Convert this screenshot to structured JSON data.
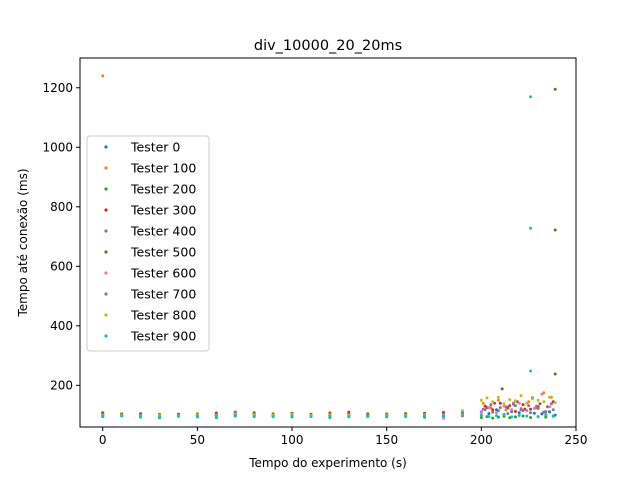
{
  "chart_data": {
    "type": "scatter",
    "title": "div_10000_20_20ms",
    "xlabel": "Tempo do experimento (s)",
    "ylabel": "Tempo até conexão (ms)",
    "xlim": [
      -12,
      250
    ],
    "ylim": [
      60,
      1300
    ],
    "xticks": [
      0,
      50,
      100,
      150,
      200,
      250
    ],
    "yticks": [
      200,
      400,
      600,
      800,
      1000,
      1200
    ],
    "grid": false,
    "legend_position": "center-left",
    "series": [
      {
        "name": "Tester 0",
        "color": "#1f77b4",
        "x": [
          0,
          10,
          20,
          30,
          40,
          50,
          60,
          70,
          80,
          90,
          100,
          110,
          120,
          130,
          140,
          150,
          160,
          170,
          180,
          190,
          200,
          204,
          208,
          212,
          216,
          220,
          224,
          228,
          232,
          236,
          239
        ],
        "y": [
          98,
          99,
          101,
          97,
          100,
          99,
          101,
          102,
          99,
          100,
          101,
          99,
          100,
          98,
          100,
          99,
          101,
          100,
          99,
          100,
          110,
          105,
          118,
          102,
          112,
          108,
          115,
          106,
          104,
          111,
          100
        ]
      },
      {
        "name": "Tester 100",
        "color": "#ff7f0e",
        "x": [
          0,
          10,
          20,
          30,
          40,
          50,
          60,
          70,
          80,
          90,
          100,
          110,
          120,
          130,
          140,
          150,
          160,
          170,
          180,
          190,
          201,
          205,
          209,
          213,
          217,
          221,
          225,
          229,
          233,
          237
        ],
        "y": [
          1240,
          101,
          100,
          103,
          99,
          100,
          102,
          101,
          100,
          99,
          101,
          100,
          101,
          103,
          99,
          100,
          101,
          100,
          102,
          105,
          140,
          125,
          150,
          118,
          135,
          122,
          145,
          130,
          175,
          160
        ]
      },
      {
        "name": "Tester 200",
        "color": "#2ca02c",
        "x": [
          0,
          10,
          20,
          30,
          40,
          50,
          60,
          70,
          80,
          90,
          100,
          110,
          120,
          130,
          140,
          150,
          160,
          170,
          180,
          190,
          200,
          203,
          206,
          209,
          212,
          215,
          218,
          222,
          226,
          230,
          234,
          238
        ],
        "y": [
          95,
          98,
          93,
          91,
          96,
          94,
          92,
          97,
          95,
          96,
          94,
          97,
          92,
          95,
          96,
          94,
          97,
          93,
          95,
          98,
          92,
          95,
          90,
          93,
          96,
          91,
          94,
          97,
          92,
          95,
          93,
          96
        ]
      },
      {
        "name": "Tester 300",
        "color": "#d62728",
        "x": [
          0,
          10,
          20,
          30,
          40,
          50,
          60,
          70,
          80,
          90,
          100,
          110,
          120,
          130,
          140,
          150,
          160,
          170,
          180,
          190,
          202,
          206,
          210,
          214,
          218,
          222,
          226,
          230,
          234,
          238
        ],
        "y": [
          108,
          104,
          103,
          101,
          102,
          103,
          107,
          110,
          108,
          104,
          106,
          103,
          107,
          110,
          104,
          103,
          105,
          106,
          109,
          112,
          130,
          118,
          140,
          125,
          112,
          135,
          120,
          128,
          110,
          145
        ]
      },
      {
        "name": "Tester 400",
        "color": "#9467bd",
        "x": [
          0,
          10,
          20,
          30,
          40,
          50,
          60,
          70,
          80,
          90,
          100,
          110,
          120,
          130,
          140,
          150,
          160,
          170,
          180,
          190,
          201,
          205,
          209,
          213,
          217,
          221,
          225,
          229,
          233,
          237
        ],
        "y": [
          102,
          100,
          104,
          98,
          101,
          103,
          100,
          108,
          104,
          101,
          103,
          102,
          99,
          104,
          101,
          100,
          103,
          101,
          104,
          106,
          120,
          135,
          115,
          128,
          140,
          118,
          132,
          125,
          110,
          138
        ]
      },
      {
        "name": "Tester 500",
        "color": "#8c564b",
        "x": [
          0,
          10,
          20,
          30,
          40,
          50,
          60,
          70,
          80,
          90,
          100,
          110,
          120,
          130,
          140,
          150,
          160,
          170,
          180,
          190,
          203,
          207,
          211,
          215,
          219,
          223,
          227,
          231,
          235,
          239,
          239,
          239
        ],
        "y": [
          104,
          102,
          105,
          101,
          103,
          104,
          102,
          106,
          104,
          103,
          105,
          102,
          104,
          103,
          101,
          104,
          102,
          105,
          103,
          108,
          125,
          140,
          188,
          132,
          145,
          120,
          158,
          138,
          128,
          1195,
          722,
          238
        ]
      },
      {
        "name": "Tester 600",
        "color": "#e377c2",
        "x": [
          0,
          10,
          20,
          30,
          40,
          50,
          60,
          70,
          80,
          90,
          100,
          110,
          120,
          130,
          140,
          150,
          160,
          170,
          180,
          190,
          200,
          204,
          208,
          212,
          216,
          220,
          224,
          228,
          232,
          236
        ],
        "y": [
          100,
          98,
          99,
          95,
          97,
          99,
          96,
          102,
          98,
          97,
          99,
          96,
          98,
          100,
          97,
          98,
          96,
          99,
          90,
          101,
          112,
          125,
          108,
          130,
          118,
          140,
          115,
          122,
          170,
          128
        ]
      },
      {
        "name": "Tester 700",
        "color": "#7f7f7f",
        "x": [
          0,
          10,
          20,
          30,
          40,
          50,
          60,
          70,
          80,
          90,
          100,
          110,
          120,
          130,
          140,
          150,
          160,
          170,
          180,
          190,
          202,
          206,
          210,
          214,
          218,
          222,
          226,
          230,
          234,
          238
        ],
        "y": [
          101,
          99,
          98,
          97,
          99,
          98,
          100,
          103,
          100,
          99,
          101,
          98,
          100,
          99,
          97,
          99,
          100,
          98,
          101,
          104,
          118,
          110,
          125,
          105,
          132,
          115,
          108,
          122,
          112,
          118
        ]
      },
      {
        "name": "Tester 800",
        "color": "#bcbd22",
        "x": [
          0,
          10,
          20,
          30,
          40,
          50,
          60,
          70,
          80,
          90,
          100,
          110,
          120,
          130,
          140,
          150,
          160,
          170,
          180,
          190,
          200,
          203,
          206,
          209,
          212,
          215,
          218,
          221,
          224,
          227,
          230,
          233,
          236,
          239
        ],
        "y": [
          99,
          100,
          97,
          99,
          98,
          101,
          99,
          104,
          101,
          100,
          102,
          99,
          101,
          100,
          98,
          100,
          99,
          101,
          100,
          115,
          150,
          158,
          145,
          160,
          138,
          152,
          148,
          165,
          140,
          155,
          150,
          145,
          160,
          142
        ]
      },
      {
        "name": "Tester 900",
        "color": "#17becf",
        "x": [
          0,
          10,
          20,
          30,
          40,
          50,
          60,
          70,
          80,
          90,
          100,
          110,
          120,
          130,
          140,
          150,
          160,
          170,
          180,
          190,
          200,
          204,
          208,
          212,
          216,
          220,
          224,
          226,
          226,
          226,
          230,
          234,
          238
        ],
        "y": [
          96,
          97,
          95,
          94,
          96,
          95,
          97,
          99,
          96,
          95,
          97,
          95,
          96,
          94,
          95,
          96,
          95,
          97,
          98,
          103,
          100,
          95,
          98,
          102,
          94,
          99,
          97,
          1170,
          728,
          248,
          95,
          100,
          98
        ]
      }
    ]
  }
}
